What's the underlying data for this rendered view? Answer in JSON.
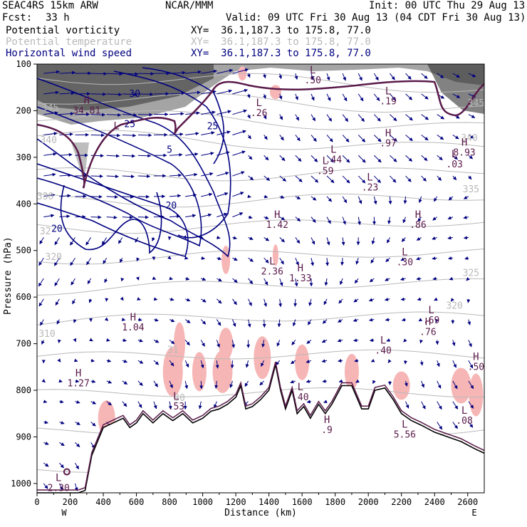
{
  "header": {
    "model": "SEAC4RS 15km ARW",
    "org": "NCAR/MMM",
    "init": "Init: 00 UTC Thu 29 Aug 13",
    "fcst_label": "Fcst:",
    "fcst_value": "33 h",
    "valid": "Valid: 09 UTC Fri 30 Aug 13 (04 CDT Fri 30 Aug 13)"
  },
  "legend": [
    {
      "name": "Potential vorticity",
      "xy": "XY=  36.1,187.3 to 175.8, 77.0",
      "color": "#000000"
    },
    {
      "name": "Potential temperature",
      "xy": "XY=  36.1,187.3 to 175.8, 77.0",
      "color": "#b9b9b9"
    },
    {
      "name": "Horizontal wind speed",
      "xy": "XY=  36.1,187.3 to 175.8, 77.0",
      "color": "#000080"
    }
  ],
  "chart_data": {
    "type": "contour",
    "xlabel": "Distance (km)",
    "ylabel": "Pressure (hPa)",
    "xlim": [
      0,
      2700
    ],
    "ylim": [
      1020,
      100
    ],
    "x_ticks": [
      0,
      200,
      400,
      600,
      800,
      1000,
      1200,
      1400,
      1600,
      1800,
      2000,
      2200,
      2400,
      2600
    ],
    "y_ticks": [
      100,
      200,
      300,
      400,
      500,
      600,
      700,
      800,
      900,
      1000
    ],
    "x_end_labels": {
      "left": "W",
      "right": "E"
    },
    "theta_labels": [
      {
        "text": "345",
        "x": 2650,
        "y": 190
      },
      {
        "text": "340",
        "x": 2610,
        "y": 265
      },
      {
        "text": "335",
        "x": 2620,
        "y": 375
      },
      {
        "text": "325",
        "x": 2620,
        "y": 555
      },
      {
        "text": "320",
        "x": 2520,
        "y": 625
      },
      {
        "text": "330",
        "x": 50,
        "y": 390
      },
      {
        "text": "32",
        "x": 50,
        "y": 465
      },
      {
        "text": "320",
        "x": 100,
        "y": 520
      },
      {
        "text": "310",
        "x": 60,
        "y": 685
      },
      {
        "text": "31",
        "x": 820,
        "y": 720
      },
      {
        "text": "30",
        "x": 860,
        "y": 823
      },
      {
        "text": "340",
        "x": 70,
        "y": 270
      },
      {
        "text": "345",
        "x": 80,
        "y": 200
      }
    ],
    "wind_speed_labels": [
      {
        "text": "25",
        "x": 560,
        "y": 235
      },
      {
        "text": "25",
        "x": 1060,
        "y": 240
      },
      {
        "text": "20",
        "x": 810,
        "y": 410
      },
      {
        "text": "20",
        "x": 120,
        "y": 460
      },
      {
        "text": "5",
        "x": 800,
        "y": 290
      },
      {
        "text": "30",
        "x": 590,
        "y": 170
      }
    ],
    "extrema": [
      {
        "kind": "H",
        "value": "34.81",
        "x": 300,
        "y": 185
      },
      {
        "kind": "L",
        "value": "",
        "x": 480,
        "y": 240
      },
      {
        "kind": "L",
        "value": ".50",
        "x": 1665,
        "y": 120
      },
      {
        "kind": "L",
        "value": ".26",
        "x": 1340,
        "y": 190
      },
      {
        "kind": "L",
        "value": ".19",
        "x": 2120,
        "y": 165
      },
      {
        "kind": "H",
        "value": ".97",
        "x": 2120,
        "y": 255
      },
      {
        "kind": "L",
        "value": ".44",
        "x": 1790,
        "y": 290
      },
      {
        "kind": "L",
        "value": ".59",
        "x": 1740,
        "y": 315
      },
      {
        "kind": "L",
        "value": ".23",
        "x": 2010,
        "y": 350
      },
      {
        "kind": "H",
        "value": "8.93",
        "x": 2580,
        "y": 275
      },
      {
        "kind": "L",
        "value": ".03",
        "x": 2520,
        "y": 300
      },
      {
        "kind": "H",
        "value": "1.42",
        "x": 1450,
        "y": 430
      },
      {
        "kind": "H",
        "value": ".86",
        "x": 2300,
        "y": 430
      },
      {
        "kind": "L",
        "value": "2.36",
        "x": 1420,
        "y": 530
      },
      {
        "kind": "H",
        "value": "1.33",
        "x": 1590,
        "y": 545
      },
      {
        "kind": "L",
        "value": ".30",
        "x": 2220,
        "y": 510
      },
      {
        "kind": "H",
        "value": "1.04",
        "x": 580,
        "y": 650
      },
      {
        "kind": "L",
        "value": ".69",
        "x": 2380,
        "y": 635
      },
      {
        "kind": "H",
        "value": ".76",
        "x": 2360,
        "y": 660
      },
      {
        "kind": "L",
        "value": ".40",
        "x": 2090,
        "y": 700
      },
      {
        "kind": "H",
        "value": "1.27",
        "x": 250,
        "y": 770
      },
      {
        "kind": "H",
        "value": ".50",
        "x": 2650,
        "y": 735
      },
      {
        "kind": "L",
        "value": ".53",
        "x": 840,
        "y": 820
      },
      {
        "kind": "L",
        "value": ".40",
        "x": 1590,
        "y": 800
      },
      {
        "kind": "L",
        "value": ".08",
        "x": 2580,
        "y": 850
      },
      {
        "kind": "H",
        "value": ".9",
        "x": 1750,
        "y": 870
      },
      {
        "kind": "L",
        "value": "5.56",
        "x": 2220,
        "y": 880
      },
      {
        "kind": "L",
        "value": "2.30",
        "x": 130,
        "y": 995
      }
    ]
  }
}
